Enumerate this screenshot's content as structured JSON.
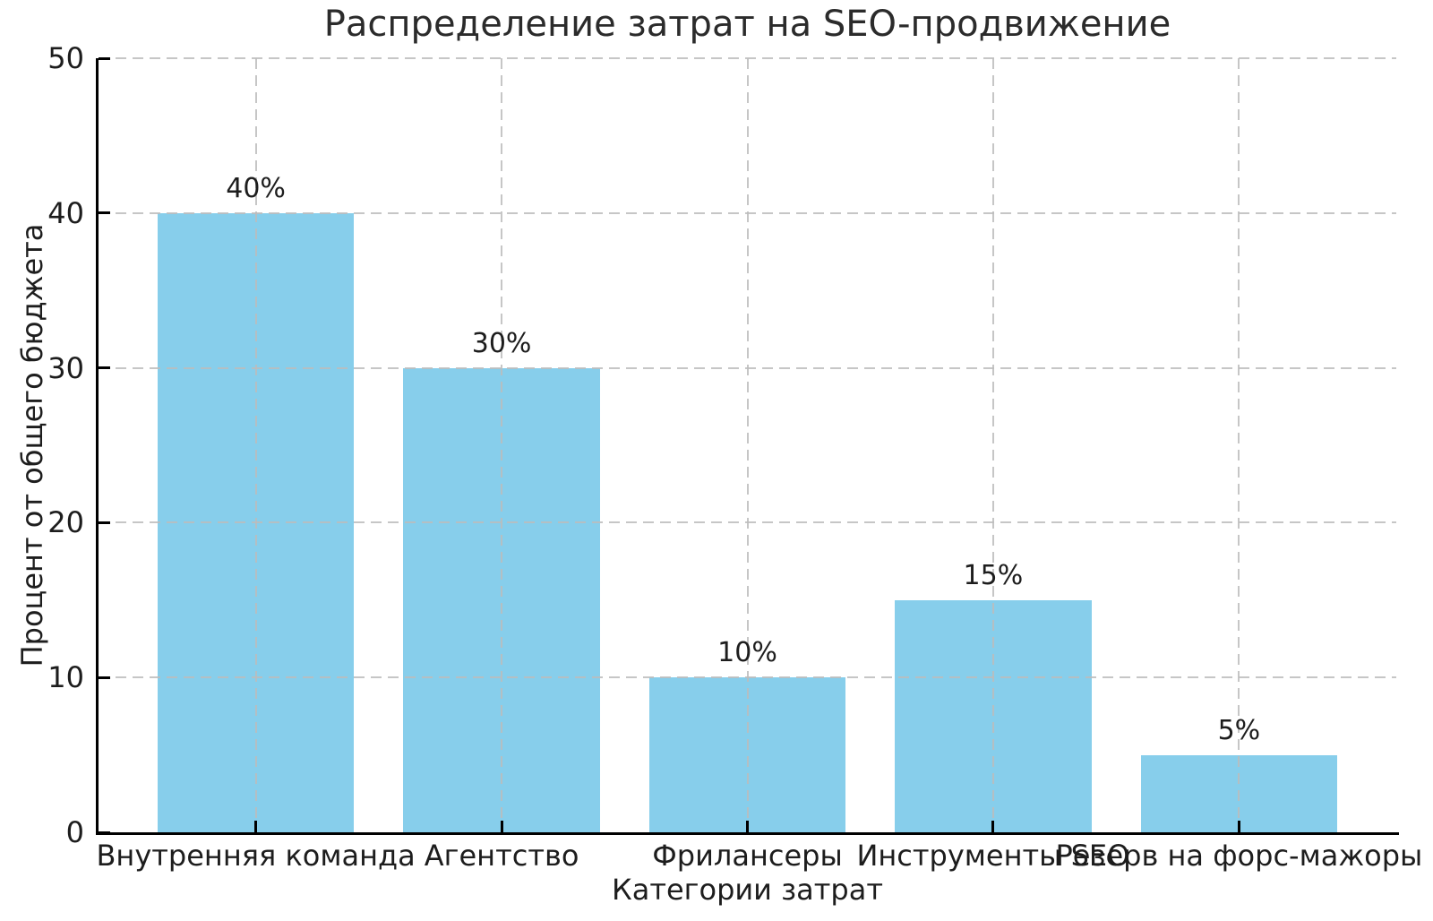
{
  "chart_data": {
    "type": "bar",
    "title": "Распределение затрат на SEO-продвижение",
    "xlabel": "Категории затрат",
    "ylabel": "Процент от общего бюджета",
    "categories": [
      "Внутренняя команда",
      "Агентство",
      "Фрилансеры",
      "Инструменты SEO",
      "Резерв на форс-мажоры"
    ],
    "values": [
      40,
      30,
      10,
      15,
      5
    ],
    "bar_labels": [
      "40%",
      "30%",
      "10%",
      "15%",
      "5%"
    ],
    "yticks": [
      0,
      10,
      20,
      30,
      40,
      50
    ],
    "ylim": [
      0,
      50
    ],
    "bar_color": "#87CEEB",
    "grid": {
      "show": true,
      "style": "dashed",
      "axes": "both",
      "color": "#bcbcbc",
      "above_bars": true
    },
    "axis_color": "#000000",
    "text_color": "#1d1d1d",
    "title_color": "#2b2b2b",
    "legend": "none"
  }
}
